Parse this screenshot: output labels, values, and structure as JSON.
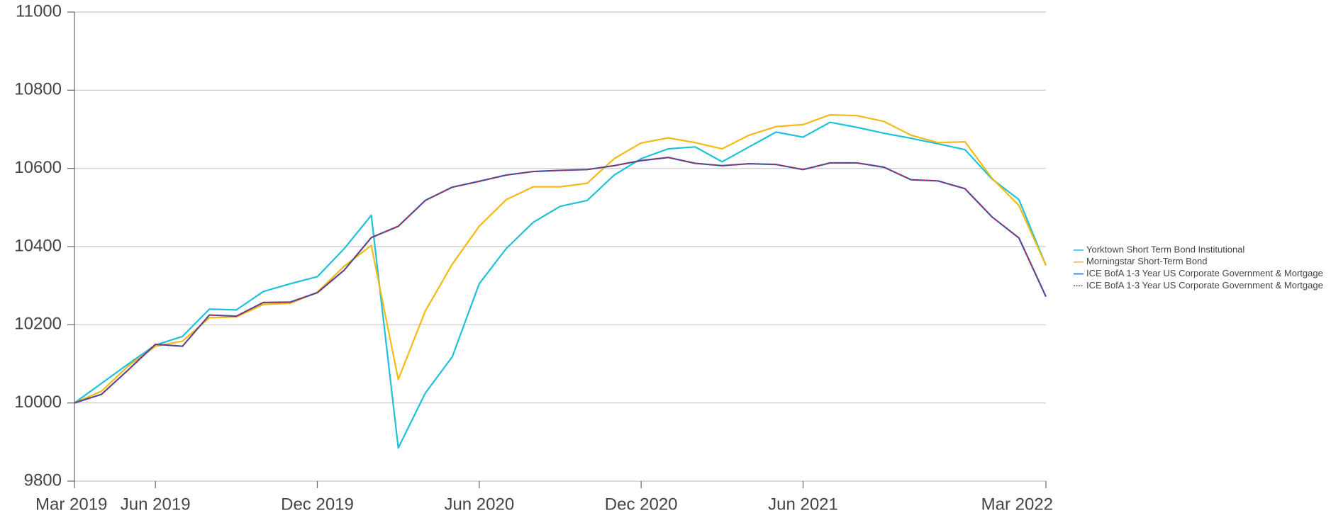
{
  "chart_data": {
    "type": "line",
    "x": [
      "Mar 2019",
      "Apr 2019",
      "May 2019",
      "Jun 2019",
      "Jul 2019",
      "Aug 2019",
      "Sep 2019",
      "Oct 2019",
      "Nov 2019",
      "Dec 2019",
      "Jan 2020",
      "Feb 2020",
      "Mar 2020",
      "Apr 2020",
      "May 2020",
      "Jun 2020",
      "Jul 2020",
      "Aug 2020",
      "Sep 2020",
      "Oct 2020",
      "Nov 2020",
      "Dec 2020",
      "Jan 2021",
      "Feb 2021",
      "Mar 2021",
      "Apr 2021",
      "May 2021",
      "Jun 2021",
      "Jul 2021",
      "Aug 2021",
      "Sep 2021",
      "Oct 2021",
      "Nov 2021",
      "Dec 2021",
      "Jan 2022",
      "Feb 2022",
      "Mar 2022"
    ],
    "xticks": [
      "Mar 2019",
      "Jun 2019",
      "Dec 2019",
      "Jun 2020",
      "Dec 2020",
      "Jun 2021",
      "Mar 2022"
    ],
    "ylim": [
      9800,
      11000
    ],
    "yticks": [
      9800,
      10000,
      10200,
      10400,
      10600,
      10800,
      11000
    ],
    "grid": true,
    "legend": "right",
    "series": [
      {
        "name": "Yorktown Short Term Bond Institutional",
        "color": "#1ec1d9",
        "style": "solid",
        "values": [
          10000,
          10050,
          10100,
          10148,
          10170,
          10240,
          10238,
          10285,
          10305,
          10323,
          10395,
          10480,
          9885,
          10025,
          10118,
          10305,
          10395,
          10462,
          10503,
          10518,
          10583,
          10625,
          10650,
          10655,
          10617,
          10655,
          10693,
          10680,
          10718,
          10705,
          10690,
          10677,
          10663,
          10648,
          10573,
          10520,
          10352
        ]
      },
      {
        "name": "Morningstar Short-Term Bond",
        "color": "#f5b914",
        "style": "solid",
        "values": [
          10000,
          10030,
          10095,
          10145,
          10158,
          10218,
          10220,
          10252,
          10255,
          10283,
          10350,
          10403,
          10060,
          10235,
          10355,
          10452,
          10520,
          10553,
          10553,
          10562,
          10625,
          10665,
          10678,
          10666,
          10650,
          10685,
          10707,
          10712,
          10737,
          10735,
          10720,
          10685,
          10666,
          10668,
          10575,
          10505,
          10352
        ]
      },
      {
        "name": "ICE BofA 1-3 Year US Corporate Government & Mortgage",
        "color": "#1e64c8",
        "style": "solid",
        "values": [
          10000,
          10022,
          10085,
          10150,
          10145,
          10225,
          10222,
          10257,
          10258,
          10282,
          10340,
          10423,
          10452,
          10518,
          10552,
          10567,
          10583,
          10592,
          10595,
          10597,
          10607,
          10620,
          10628,
          10613,
          10607,
          10612,
          10610,
          10597,
          10614,
          10614,
          10603,
          10571,
          10568,
          10548,
          10476,
          10422,
          10272
        ]
      },
      {
        "name": "ICE BofA 1-3 Year US Corporate Government & Mortgage",
        "color": "#c0203a",
        "style": "dashed",
        "values": [
          10000,
          10022,
          10085,
          10150,
          10145,
          10225,
          10222,
          10257,
          10258,
          10282,
          10340,
          10423,
          10452,
          10518,
          10552,
          10567,
          10583,
          10592,
          10595,
          10597,
          10607,
          10620,
          10628,
          10613,
          10607,
          10612,
          10610,
          10597,
          10614,
          10614,
          10603,
          10571,
          10568,
          10548,
          10476,
          10422,
          10272
        ]
      }
    ]
  }
}
